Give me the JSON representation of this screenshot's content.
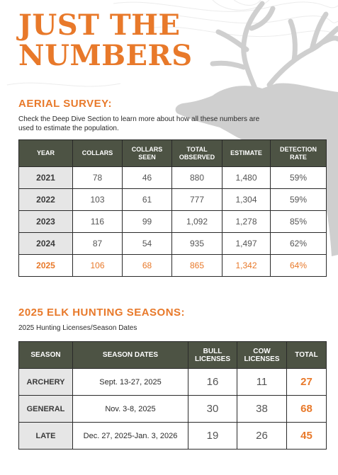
{
  "title": {
    "line1": "JUST THE",
    "line2": "NUMBERS"
  },
  "aerial": {
    "heading": "AERIAL SURVEY:",
    "intro": "Check the Deep Dive Section to learn more about how all these numbers are used to estimate the population.",
    "headers": [
      "YEAR",
      "COLLARS",
      "COLLARS SEEN",
      "TOTAL OBSERVED",
      "ESTIMATE",
      "DETECTION RATE"
    ],
    "rows": [
      [
        "2021",
        "78",
        "46",
        "880",
        "1,480",
        "59%"
      ],
      [
        "2022",
        "103",
        "61",
        "777",
        "1,304",
        "59%"
      ],
      [
        "2023",
        "116",
        "99",
        "1,092",
        "1,278",
        "85%"
      ],
      [
        "2024",
        "87",
        "54",
        "935",
        "1,497",
        "62%"
      ],
      [
        "2025",
        "106",
        "68",
        "865",
        "1,342",
        "64%"
      ]
    ]
  },
  "seasons": {
    "heading": "2025 ELK HUNTING SEASONS:",
    "subheading": "2025 Hunting Licenses/Season Dates",
    "headers": [
      "SEASON",
      "SEASON DATES",
      "BULL LICENSES",
      "COW LICENSES",
      "TOTAL"
    ],
    "rows": [
      [
        "ARCHERY",
        "Sept. 13-27, 2025",
        "16",
        "11",
        "27"
      ],
      [
        "GENERAL",
        "Nov. 3-8, 2025",
        "30",
        "38",
        "68"
      ],
      [
        "LATE",
        "Dec. 27, 2025-Jan. 3, 2026",
        "19",
        "26",
        "45"
      ]
    ]
  },
  "colors": {
    "accent": "#e8792a",
    "header_bg": "#4d5344",
    "row_head_bg": "#e6e6e6",
    "elk_silhouette": "#cfcfcf"
  },
  "icons": {
    "background": "elk-silhouette-icon",
    "texture": "topographic-lines-icon"
  }
}
